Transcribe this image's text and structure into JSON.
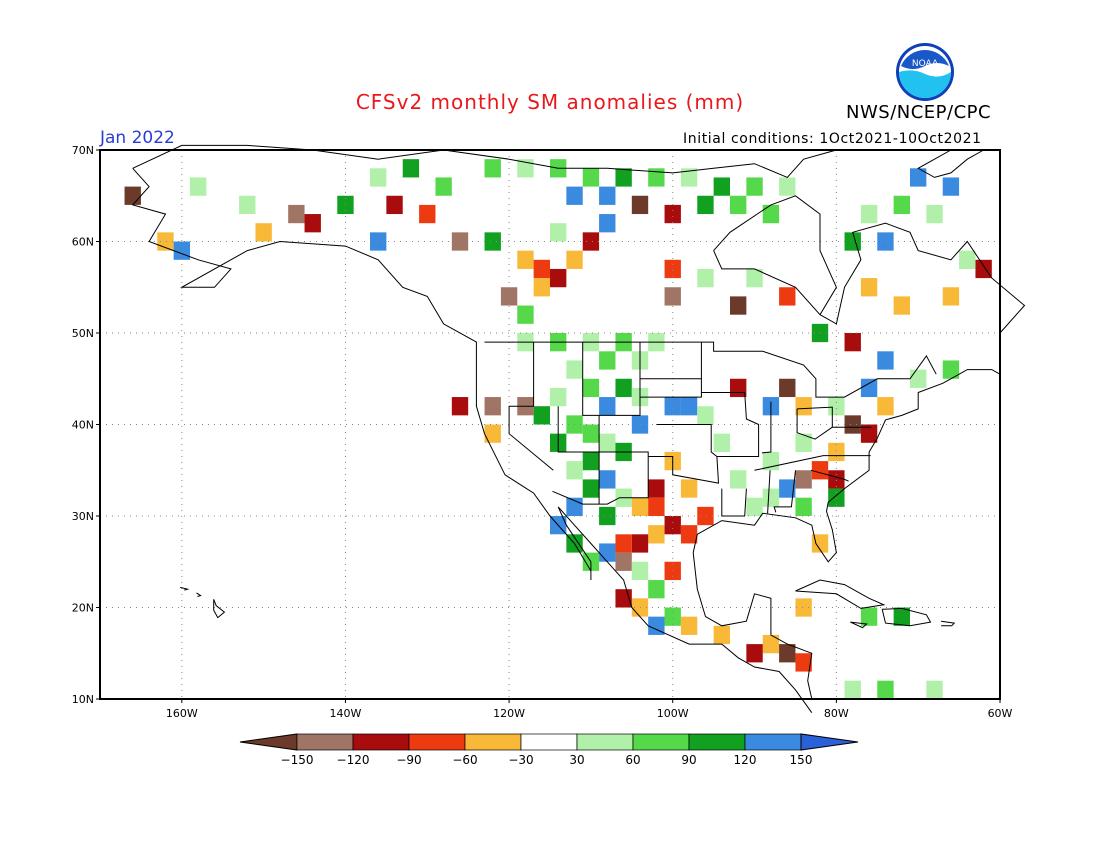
{
  "header": {
    "title": "CFSv2 monthly SM anomalies (mm)",
    "org": "NWS/NCEP/CPC",
    "month": "Jan 2022",
    "initial_conditions": "Initial conditions: 1Oct2021-10Oct2021",
    "logo_text": "NOAA"
  },
  "map": {
    "lon_range": [
      -170,
      -60
    ],
    "lat_range": [
      10,
      70
    ],
    "lon_ticks": [
      {
        "value": -160,
        "label": "160W"
      },
      {
        "value": -140,
        "label": "140W"
      },
      {
        "value": -120,
        "label": "120W"
      },
      {
        "value": -100,
        "label": "100W"
      },
      {
        "value": -80,
        "label": "80W"
      },
      {
        "value": -60,
        "label": "60W"
      }
    ],
    "lat_ticks": [
      {
        "value": 70,
        "label": "70N"
      },
      {
        "value": 60,
        "label": "60N"
      },
      {
        "value": 50,
        "label": "50N"
      },
      {
        "value": 40,
        "label": "40N"
      },
      {
        "value": 30,
        "label": "30N"
      },
      {
        "value": 20,
        "label": "20N"
      },
      {
        "value": 10,
        "label": "10N"
      }
    ],
    "grid": "dotted",
    "cell_size_deg": 2
  },
  "colorbar": {
    "labels": [
      "-150",
      "-120",
      "-90",
      "-60",
      "-30",
      "30",
      "60",
      "90",
      "120",
      "150"
    ],
    "colors": [
      "#6b3a2a",
      "#a07565",
      "#a80c0c",
      "#ee3a10",
      "#f8b838",
      "#ffffff",
      "#b0f0a8",
      "#55d84a",
      "#12a020",
      "#3a8ae0",
      "#2a60d8"
    ]
  },
  "anomaly_classes": {
    "lt_-150": "#6b3a2a",
    "-150_-120": "#a07565",
    "-120_-90": "#a80c0c",
    "-90_-60": "#ee3a10",
    "-60_-30": "#f8b838",
    "30_60": "#b0f0a8",
    "60_90": "#55d84a",
    "90_120": "#12a020",
    "120_150": "#3a8ae0"
  },
  "anomaly_cells": [
    {
      "lon": -122,
      "lat": 68,
      "c": "60_90"
    },
    {
      "lon": -118,
      "lat": 68,
      "c": "30_60"
    },
    {
      "lon": -114,
      "lat": 68,
      "c": "60_90"
    },
    {
      "lon": -110,
      "lat": 67,
      "c": "60_90"
    },
    {
      "lon": -106,
      "lat": 67,
      "c": "90_120"
    },
    {
      "lon": -102,
      "lat": 67,
      "c": "60_90"
    },
    {
      "lon": -98,
      "lat": 67,
      "c": "30_60"
    },
    {
      "lon": -94,
      "lat": 66,
      "c": "90_120"
    },
    {
      "lon": -90,
      "lat": 66,
      "c": "60_90"
    },
    {
      "lon": -86,
      "lat": 66,
      "c": "30_60"
    },
    {
      "lon": -112,
      "lat": 65,
      "c": "120_150"
    },
    {
      "lon": -108,
      "lat": 65,
      "c": "120_150"
    },
    {
      "lon": -96,
      "lat": 64,
      "c": "90_120"
    },
    {
      "lon": -92,
      "lat": 64,
      "c": "60_90"
    },
    {
      "lon": -88,
      "lat": 63,
      "c": "60_90"
    },
    {
      "lon": -100,
      "lat": 63,
      "c": "-120_-90"
    },
    {
      "lon": -104,
      "lat": 64,
      "c": "lt_-150"
    },
    {
      "lon": -70,
      "lat": 67,
      "c": "120_150"
    },
    {
      "lon": -66,
      "lat": 66,
      "c": "120_150"
    },
    {
      "lon": -72,
      "lat": 64,
      "c": "60_90"
    },
    {
      "lon": -76,
      "lat": 63,
      "c": "30_60"
    },
    {
      "lon": -68,
      "lat": 63,
      "c": "30_60"
    },
    {
      "lon": -158,
      "lat": 66,
      "c": "30_60"
    },
    {
      "lon": -152,
      "lat": 64,
      "c": "30_60"
    },
    {
      "lon": -146,
      "lat": 63,
      "c": "-150_-120"
    },
    {
      "lon": -144,
      "lat": 62,
      "c": "-120_-90"
    },
    {
      "lon": -140,
      "lat": 64,
      "c": "90_120"
    },
    {
      "lon": -150,
      "lat": 61,
      "c": "-60_-30"
    },
    {
      "lon": -162,
      "lat": 60,
      "c": "-60_-30"
    },
    {
      "lon": -160,
      "lat": 59,
      "c": "120_150"
    },
    {
      "lon": -166,
      "lat": 65,
      "c": "lt_-150"
    },
    {
      "lon": -136,
      "lat": 67,
      "c": "30_60"
    },
    {
      "lon": -132,
      "lat": 68,
      "c": "90_120"
    },
    {
      "lon": -128,
      "lat": 66,
      "c": "60_90"
    },
    {
      "lon": -134,
      "lat": 64,
      "c": "-120_-90"
    },
    {
      "lon": -130,
      "lat": 63,
      "c": "-90_-60"
    },
    {
      "lon": -136,
      "lat": 60,
      "c": "120_150"
    },
    {
      "lon": -126,
      "lat": 60,
      "c": "-150_-120"
    },
    {
      "lon": -122,
      "lat": 60,
      "c": "90_120"
    },
    {
      "lon": -118,
      "lat": 58,
      "c": "-60_-30"
    },
    {
      "lon": -116,
      "lat": 57,
      "c": "-90_-60"
    },
    {
      "lon": -114,
      "lat": 56,
      "c": "-120_-90"
    },
    {
      "lon": -116,
      "lat": 55,
      "c": "-60_-30"
    },
    {
      "lon": -112,
      "lat": 58,
      "c": "-60_-30"
    },
    {
      "lon": -120,
      "lat": 54,
      "c": "-150_-120"
    },
    {
      "lon": -118,
      "lat": 52,
      "c": "60_90"
    },
    {
      "lon": -114,
      "lat": 61,
      "c": "30_60"
    },
    {
      "lon": -110,
      "lat": 60,
      "c": "-120_-90"
    },
    {
      "lon": -108,
      "lat": 62,
      "c": "120_150"
    },
    {
      "lon": -100,
      "lat": 57,
      "c": "-90_-60"
    },
    {
      "lon": -96,
      "lat": 56,
      "c": "30_60"
    },
    {
      "lon": -90,
      "lat": 56,
      "c": "30_60"
    },
    {
      "lon": -86,
      "lat": 54,
      "c": "-90_-60"
    },
    {
      "lon": -92,
      "lat": 53,
      "c": "lt_-150"
    },
    {
      "lon": -100,
      "lat": 54,
      "c": "-150_-120"
    },
    {
      "lon": -76,
      "lat": 55,
      "c": "-60_-30"
    },
    {
      "lon": -72,
      "lat": 53,
      "c": "-60_-30"
    },
    {
      "lon": -66,
      "lat": 54,
      "c": "-60_-30"
    },
    {
      "lon": -62,
      "lat": 57,
      "c": "-120_-90"
    },
    {
      "lon": -64,
      "lat": 58,
      "c": "30_60"
    },
    {
      "lon": -74,
      "lat": 60,
      "c": "120_150"
    },
    {
      "lon": -78,
      "lat": 60,
      "c": "90_120"
    },
    {
      "lon": -118,
      "lat": 49,
      "c": "30_60"
    },
    {
      "lon": -114,
      "lat": 49,
      "c": "60_90"
    },
    {
      "lon": -110,
      "lat": 49,
      "c": "30_60"
    },
    {
      "lon": -106,
      "lat": 49,
      "c": "60_90"
    },
    {
      "lon": -102,
      "lat": 49,
      "c": "30_60"
    },
    {
      "lon": -104,
      "lat": 47,
      "c": "30_60"
    },
    {
      "lon": -108,
      "lat": 47,
      "c": "60_90"
    },
    {
      "lon": -112,
      "lat": 46,
      "c": "30_60"
    },
    {
      "lon": -110,
      "lat": 44,
      "c": "60_90"
    },
    {
      "lon": -106,
      "lat": 44,
      "c": "90_120"
    },
    {
      "lon": -108,
      "lat": 42,
      "c": "120_150"
    },
    {
      "lon": -104,
      "lat": 43,
      "c": "30_60"
    },
    {
      "lon": -114,
      "lat": 43,
      "c": "30_60"
    },
    {
      "lon": -116,
      "lat": 41,
      "c": "90_120"
    },
    {
      "lon": -112,
      "lat": 40,
      "c": "60_90"
    },
    {
      "lon": -110,
      "lat": 39,
      "c": "60_90"
    },
    {
      "lon": -114,
      "lat": 38,
      "c": "90_120"
    },
    {
      "lon": -108,
      "lat": 38,
      "c": "30_60"
    },
    {
      "lon": -106,
      "lat": 37,
      "c": "90_120"
    },
    {
      "lon": -110,
      "lat": 36,
      "c": "90_120"
    },
    {
      "lon": -112,
      "lat": 35,
      "c": "30_60"
    },
    {
      "lon": -108,
      "lat": 34,
      "c": "120_150"
    },
    {
      "lon": -110,
      "lat": 33,
      "c": "90_120"
    },
    {
      "lon": -106,
      "lat": 32,
      "c": "30_60"
    },
    {
      "lon": -112,
      "lat": 31,
      "c": "120_150"
    },
    {
      "lon": -108,
      "lat": 30,
      "c": "90_120"
    },
    {
      "lon": -104,
      "lat": 31,
      "c": "-60_-30"
    },
    {
      "lon": -122,
      "lat": 42,
      "c": "-150_-120"
    },
    {
      "lon": -118,
      "lat": 42,
      "c": "-150_-120"
    },
    {
      "lon": -126,
      "lat": 42,
      "c": "-120_-90"
    },
    {
      "lon": -122,
      "lat": 39,
      "c": "-60_-30"
    },
    {
      "lon": -100,
      "lat": 42,
      "c": "120_150"
    },
    {
      "lon": -98,
      "lat": 42,
      "c": "120_150"
    },
    {
      "lon": -104,
      "lat": 40,
      "c": "120_150"
    },
    {
      "lon": -100,
      "lat": 36,
      "c": "-60_-30"
    },
    {
      "lon": -102,
      "lat": 33,
      "c": "-120_-90"
    },
    {
      "lon": -102,
      "lat": 31,
      "c": "-90_-60"
    },
    {
      "lon": -100,
      "lat": 29,
      "c": "-120_-90"
    },
    {
      "lon": -98,
      "lat": 28,
      "c": "-90_-60"
    },
    {
      "lon": -102,
      "lat": 28,
      "c": "-60_-30"
    },
    {
      "lon": -104,
      "lat": 27,
      "c": "-120_-90"
    },
    {
      "lon": -98,
      "lat": 33,
      "c": "-60_-30"
    },
    {
      "lon": -96,
      "lat": 30,
      "c": "-90_-60"
    },
    {
      "lon": -106,
      "lat": 27,
      "c": "-90_-60"
    },
    {
      "lon": -106,
      "lat": 25,
      "c": "-150_-120"
    },
    {
      "lon": -108,
      "lat": 26,
      "c": "120_150"
    },
    {
      "lon": -114,
      "lat": 29,
      "c": "120_150"
    },
    {
      "lon": -112,
      "lat": 27,
      "c": "90_120"
    },
    {
      "lon": -110,
      "lat": 25,
      "c": "60_90"
    },
    {
      "lon": -104,
      "lat": 24,
      "c": "30_60"
    },
    {
      "lon": -100,
      "lat": 24,
      "c": "-90_-60"
    },
    {
      "lon": -102,
      "lat": 22,
      "c": "60_90"
    },
    {
      "lon": -104,
      "lat": 20,
      "c": "-60_-30"
    },
    {
      "lon": -100,
      "lat": 19,
      "c": "60_90"
    },
    {
      "lon": -98,
      "lat": 18,
      "c": "-60_-30"
    },
    {
      "lon": -94,
      "lat": 17,
      "c": "-60_-30"
    },
    {
      "lon": -102,
      "lat": 18,
      "c": "120_150"
    },
    {
      "lon": -106,
      "lat": 21,
      "c": "-120_-90"
    },
    {
      "lon": -88,
      "lat": 16,
      "c": "-60_-30"
    },
    {
      "lon": -86,
      "lat": 15,
      "c": "lt_-150"
    },
    {
      "lon": -84,
      "lat": 14,
      "c": "-90_-60"
    },
    {
      "lon": -90,
      "lat": 15,
      "c": "-120_-90"
    },
    {
      "lon": -84,
      "lat": 20,
      "c": "-60_-30"
    },
    {
      "lon": -96,
      "lat": 41,
      "c": "30_60"
    },
    {
      "lon": -94,
      "lat": 38,
      "c": "30_60"
    },
    {
      "lon": -92,
      "lat": 44,
      "c": "-120_-90"
    },
    {
      "lon": -88,
      "lat": 42,
      "c": "120_150"
    },
    {
      "lon": -86,
      "lat": 44,
      "c": "lt_-150"
    },
    {
      "lon": -84,
      "lat": 42,
      "c": "-60_-30"
    },
    {
      "lon": -80,
      "lat": 42,
      "c": "30_60"
    },
    {
      "lon": -76,
      "lat": 44,
      "c": "120_150"
    },
    {
      "lon": -74,
      "lat": 42,
      "c": "-60_-30"
    },
    {
      "lon": -78,
      "lat": 40,
      "c": "lt_-150"
    },
    {
      "lon": -76,
      "lat": 39,
      "c": "-120_-90"
    },
    {
      "lon": -80,
      "lat": 37,
      "c": "-60_-30"
    },
    {
      "lon": -82,
      "lat": 35,
      "c": "-90_-60"
    },
    {
      "lon": -84,
      "lat": 34,
      "c": "-150_-120"
    },
    {
      "lon": -80,
      "lat": 34,
      "c": "-120_-90"
    },
    {
      "lon": -86,
      "lat": 33,
      "c": "120_150"
    },
    {
      "lon": -88,
      "lat": 32,
      "c": "30_60"
    },
    {
      "lon": -84,
      "lat": 31,
      "c": "60_90"
    },
    {
      "lon": -90,
      "lat": 31,
      "c": "30_60"
    },
    {
      "lon": -92,
      "lat": 34,
      "c": "30_60"
    },
    {
      "lon": -80,
      "lat": 32,
      "c": "90_120"
    },
    {
      "lon": -82,
      "lat": 27,
      "c": "-60_-30"
    },
    {
      "lon": -84,
      "lat": 38,
      "c": "30_60"
    },
    {
      "lon": -88,
      "lat": 36,
      "c": "30_60"
    },
    {
      "lon": -70,
      "lat": 45,
      "c": "30_60"
    },
    {
      "lon": -66,
      "lat": 46,
      "c": "60_90"
    },
    {
      "lon": -74,
      "lat": 47,
      "c": "120_150"
    },
    {
      "lon": -78,
      "lat": 49,
      "c": "-120_-90"
    },
    {
      "lon": -82,
      "lat": 50,
      "c": "90_120"
    },
    {
      "lon": -76,
      "lat": 19,
      "c": "60_90"
    },
    {
      "lon": -72,
      "lat": 19,
      "c": "90_120"
    },
    {
      "lon": -74,
      "lat": 11,
      "c": "60_90"
    },
    {
      "lon": -68,
      "lat": 11,
      "c": "30_60"
    },
    {
      "lon": -78,
      "lat": 11,
      "c": "30_60"
    }
  ]
}
